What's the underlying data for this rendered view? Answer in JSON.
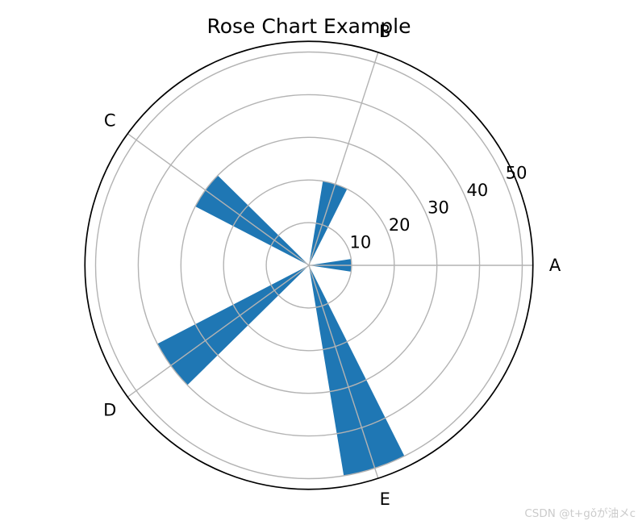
{
  "page": {
    "background": "#ffffff"
  },
  "chart_data": {
    "type": "polar_bar",
    "title": "Rose Chart Example",
    "categories": [
      "A",
      "B",
      "C",
      "D",
      "E"
    ],
    "values": [
      10,
      20,
      30,
      40,
      50
    ],
    "angles_deg": [
      0,
      72,
      144,
      216,
      288
    ],
    "bar_width_rad": 0.3,
    "radial_ticks": [
      10,
      20,
      30,
      40,
      50
    ],
    "rlim": [
      0,
      52.5
    ],
    "rlabel_angle_deg": 24,
    "grid": true,
    "legend": false,
    "colors": {
      "bar": "#1f77b4",
      "grid": "#b3b3b3",
      "spine": "#000000",
      "text": "#000000"
    }
  },
  "watermark": {
    "text": "CSDN @t+gǒが油メc",
    "color": "#cbcbcb"
  }
}
